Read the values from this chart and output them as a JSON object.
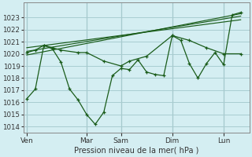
{
  "bg_color": "#d4eef2",
  "grid_color": "#a8ccd0",
  "line_color": "#1a5c1a",
  "ylim": [
    1013.5,
    1024.2
  ],
  "yticks": [
    1014,
    1015,
    1016,
    1017,
    1018,
    1019,
    1020,
    1021,
    1022,
    1023
  ],
  "xlabel": "Pression niveau de la mer( hPa )",
  "day_labels": [
    "Ven",
    "Mar",
    "Sam",
    "Dim",
    "Lun"
  ],
  "day_positions": [
    0.0,
    3.5,
    5.5,
    8.5,
    11.5
  ],
  "xlim": [
    -0.2,
    13.0
  ],
  "trend1_x": [
    0.0,
    12.5
  ],
  "trend1_y": [
    1019.9,
    1023.3
  ],
  "trend2_x": [
    0.0,
    12.5
  ],
  "trend2_y": [
    1020.2,
    1023.1
  ],
  "trend3_x": [
    0.0,
    12.5
  ],
  "trend3_y": [
    1020.5,
    1022.8
  ],
  "zigzag_x": [
    0.0,
    0.5,
    1.0,
    1.5,
    2.0,
    2.5,
    3.0,
    3.5,
    4.0,
    4.5,
    5.0,
    5.5,
    6.0,
    6.5,
    7.0,
    7.5,
    8.0,
    8.5,
    9.0,
    9.5,
    10.0,
    10.5,
    11.0,
    11.5,
    12.0,
    12.5
  ],
  "zigzag_y": [
    1016.3,
    1017.1,
    1020.7,
    1020.4,
    1019.3,
    1017.1,
    1016.2,
    1015.0,
    1014.2,
    1015.2,
    1018.2,
    1018.8,
    1018.7,
    1019.5,
    1018.5,
    1018.3,
    1018.2,
    1021.5,
    1021.1,
    1019.2,
    1018.0,
    1019.2,
    1020.1,
    1019.1,
    1023.2,
    1023.4
  ],
  "smooth_x": [
    0.0,
    0.5,
    1.0,
    1.5,
    2.0,
    3.0,
    3.5,
    4.5,
    5.5,
    6.0,
    7.0,
    8.5,
    9.5,
    10.5,
    11.5,
    12.5
  ],
  "smooth_y": [
    1020.1,
    1020.3,
    1020.7,
    1020.5,
    1020.3,
    1020.1,
    1020.1,
    1019.4,
    1019.0,
    1019.4,
    1019.8,
    1021.5,
    1021.1,
    1020.5,
    1020.0,
    1020.0
  ]
}
